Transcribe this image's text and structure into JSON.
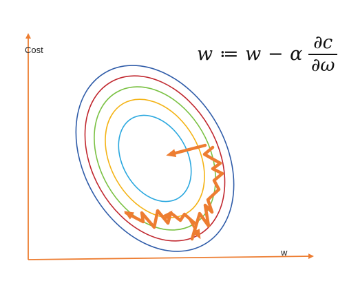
{
  "axes": {
    "y_label": "Cost",
    "x_label": "w",
    "color": "#ED7D31"
  },
  "formula": {
    "lhs": "w ≔ w − α",
    "numerator": "∂c",
    "denominator": "∂ω"
  },
  "contours": {
    "colors": [
      "#2E5BA8",
      "#C0262D",
      "#7AC143",
      "#F4B315",
      "#2BA8DF"
    ]
  },
  "descent_path": {
    "color": "#ED7D31"
  }
}
